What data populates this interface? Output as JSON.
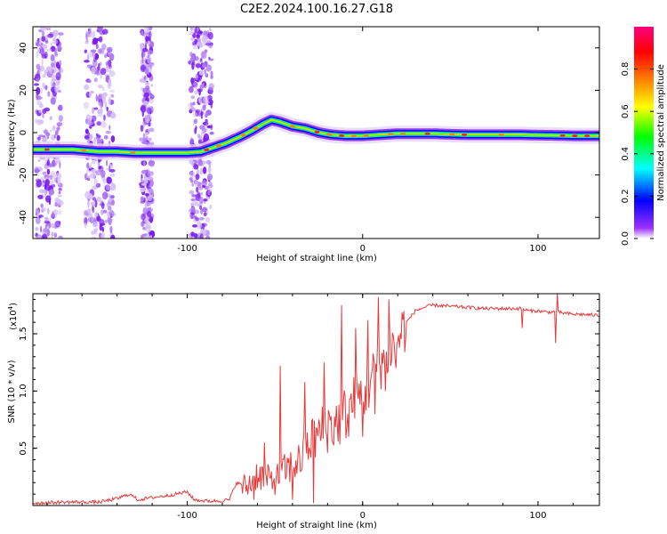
{
  "title": "C2E2.2024.100.16.27.G18",
  "chart_data": [
    {
      "type": "heatmap",
      "xlabel": "Height of straight line (km)",
      "ylabel": "Frequency (Hz)",
      "xlim": [
        -188,
        135
      ],
      "ylim": [
        -50,
        50
      ],
      "xticks": [
        -100,
        0,
        100
      ],
      "xtick_labels": [
        "-100",
        "0",
        "100"
      ],
      "yticks": [
        -40,
        -20,
        0,
        20,
        40
      ],
      "ytick_labels": [
        "-40",
        "-20",
        "0",
        "20",
        "40"
      ],
      "colorbar": {
        "label": "Normalized spectral amplitude",
        "range": [
          0,
          1
        ],
        "ticks": [
          0,
          0.2,
          0.4,
          0.6,
          0.8
        ],
        "tick_labels": [
          "0.0",
          "0.2",
          "0.4",
          "0.6",
          "0.8"
        ],
        "colors": [
          "#ffffff",
          "#7b00ff",
          "#0000ff",
          "#00ffff",
          "#00ff00",
          "#ffff00",
          "#ff8000",
          "#ff0000",
          "#ff0080"
        ]
      },
      "ridge": {
        "x": [
          -185,
          -175,
          -165,
          -150,
          -140,
          -130,
          -120,
          -110,
          -100,
          -92,
          -85,
          -78,
          -70,
          -63,
          -57,
          -52,
          -47,
          -40,
          -33,
          -25,
          -18,
          -10,
          -5,
          0,
          10,
          20,
          30,
          40,
          50,
          60,
          70,
          80,
          90,
          100,
          110,
          120,
          135
        ],
        "y": [
          -8,
          -8,
          -8,
          -9,
          -9,
          -9.5,
          -9.5,
          -9.5,
          -9.5,
          -9,
          -7,
          -5,
          -2,
          1,
          4,
          6,
          5,
          3,
          2,
          0,
          -1,
          -1.5,
          -1.5,
          -1.5,
          -1,
          -0.5,
          -0.5,
          -0.5,
          -0.8,
          -1,
          -1,
          -1,
          -1,
          -1.2,
          -1.3,
          -1.5,
          -1.5
        ]
      }
    },
    {
      "type": "line",
      "xlabel": "Height of straight line (km)",
      "ylabel": "SNR (10 * v/v)",
      "y_multiplier_label": "(x10",
      "y_multiplier_exponent": "4",
      "y_multiplier_close": ")",
      "xlim": [
        -188,
        135
      ],
      "ylim": [
        0,
        1.85
      ],
      "xticks": [
        -100,
        0,
        100
      ],
      "xtick_labels": [
        "-100",
        "0",
        "100"
      ],
      "yticks": [
        0.5,
        1.0,
        1.5
      ],
      "ytick_labels": [
        "0.5",
        "1.0",
        "1.5"
      ],
      "color": "#e8393a",
      "baseline": {
        "x": [
          -188,
          -170,
          -150,
          -140,
          -133,
          -128,
          -120,
          -110,
          -100,
          -96,
          -90,
          -82,
          -76,
          -72,
          -66,
          -60,
          -55,
          -50,
          -45,
          -40,
          -35,
          -30,
          -25,
          -20,
          -15,
          -10,
          -5,
          0,
          5,
          10,
          15,
          20,
          25,
          30,
          35,
          40,
          50,
          60,
          70,
          80,
          90,
          95,
          100,
          105,
          110,
          115,
          120,
          125,
          135
        ],
        "y": [
          0.02,
          0.03,
          0.03,
          0.06,
          0.1,
          0.05,
          0.07,
          0.09,
          0.12,
          0.05,
          0.04,
          0.04,
          0.05,
          0.2,
          0.16,
          0.28,
          0.23,
          0.22,
          0.3,
          0.35,
          0.4,
          0.55,
          0.62,
          0.7,
          0.72,
          0.8,
          0.9,
          0.95,
          1.1,
          1.25,
          1.35,
          1.45,
          1.6,
          1.7,
          1.73,
          1.75,
          1.74,
          1.73,
          1.72,
          1.72,
          1.72,
          1.7,
          1.7,
          1.69,
          1.69,
          1.68,
          1.67,
          1.67,
          1.66
        ]
      },
      "spikes": [
        {
          "x": -62,
          "y": 0.05
        },
        {
          "x": -56,
          "y": 0.55
        },
        {
          "x": -47,
          "y": 1.22
        },
        {
          "x": -40,
          "y": 0.05
        },
        {
          "x": -33,
          "y": 1.08
        },
        {
          "x": -28,
          "y": 0.02
        },
        {
          "x": -22,
          "y": 1.25
        },
        {
          "x": -17,
          "y": 0.55
        },
        {
          "x": -12,
          "y": 1.75
        },
        {
          "x": -8,
          "y": 0.6
        },
        {
          "x": -4,
          "y": 1.55
        },
        {
          "x": 0,
          "y": 0.6
        },
        {
          "x": 3,
          "y": 1.62
        },
        {
          "x": 7,
          "y": 0.8
        },
        {
          "x": 9,
          "y": 1.82
        },
        {
          "x": 13,
          "y": 1.0
        },
        {
          "x": 15,
          "y": 1.8
        },
        {
          "x": 19,
          "y": 1.2
        },
        {
          "x": 91,
          "y": 1.55
        },
        {
          "x": 110,
          "y": 1.42
        },
        {
          "x": 111,
          "y": 1.85
        }
      ]
    }
  ]
}
